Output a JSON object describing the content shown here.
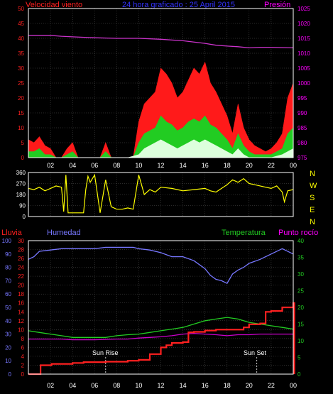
{
  "header": {
    "wind_label": "Velocidad viento",
    "title": "24 hora graficado : 25 April 2015",
    "pressure_label": "Presión"
  },
  "direction_letters": [
    "N",
    "W",
    "S",
    "E",
    "N"
  ],
  "lower_header": {
    "rain_label": "Lluvia",
    "humidity_label": "Humedad",
    "temperature_label": "Temperatura",
    "dewpoint_label": "Punto rocío"
  },
  "annotations": {
    "sunrise": "Sun Rise",
    "sunset": "Sun Set"
  },
  "colors": {
    "background": "#000000",
    "frame": "#ffffff",
    "grid": "#555555",
    "wind_axis": "#ff2020",
    "pressure_axis": "#ff00ff",
    "title": "#3333ff",
    "direction": "#ffff00",
    "humidity": "#7777ff",
    "rain": "#ff2020",
    "temperature": "#22cc22",
    "dewpoint": "#cc00cc",
    "gust": "#ff1a1a",
    "average_wind": "#22cc22",
    "min_wind": "#ddffdd",
    "pressure": "#cc33cc"
  },
  "chart_data": [
    {
      "type": "area",
      "title": "24 hora graficado : 25 April 2015",
      "x_ticks": [
        "02",
        "04",
        "06",
        "08",
        "10",
        "12",
        "14",
        "16",
        "18",
        "20",
        "22",
        "00"
      ],
      "x_range": [
        0,
        24
      ],
      "y_left": {
        "label": "Velocidad viento",
        "range": [
          0,
          50
        ],
        "ticks": [
          0,
          5,
          10,
          15,
          20,
          25,
          30,
          35,
          40,
          45,
          50
        ]
      },
      "y_right": {
        "label": "Presión",
        "range": [
          975,
          1025
        ],
        "ticks": [
          975,
          980,
          985,
          990,
          995,
          1000,
          1005,
          1010,
          1015,
          1020,
          1025
        ]
      },
      "grid": true,
      "series": [
        {
          "name": "Presión",
          "axis": "right",
          "x": [
            0,
            2,
            3,
            4,
            6,
            8,
            10,
            12,
            14,
            16,
            17,
            18,
            19,
            20,
            21,
            22,
            24
          ],
          "y": [
            1016,
            1016,
            1015.7,
            1015.5,
            1015.2,
            1015,
            1015,
            1014.7,
            1014.2,
            1013.3,
            1012.7,
            1012.4,
            1012.2,
            1011.8,
            1012,
            1012,
            1011.8
          ]
        },
        {
          "axis": "left",
          "x": [
            0,
            0.5,
            1,
            1.5,
            2,
            2.5,
            3,
            3.5,
            4,
            4.5,
            5,
            5.5,
            6,
            6.5,
            7,
            7.5,
            8,
            8.5,
            9,
            9.5,
            10,
            10.5,
            11,
            11.5,
            12,
            12.5,
            13,
            13.5,
            14,
            14.5,
            15,
            15.5,
            16,
            16.5,
            17,
            17.5,
            18,
            18.5,
            19,
            19.5,
            20,
            20.5,
            21,
            21.5,
            22,
            22.5,
            23,
            23.5,
            24
          ],
          "y": [
            6,
            5,
            7,
            4,
            3,
            0,
            0,
            3,
            5,
            0,
            0,
            0,
            0,
            0,
            5,
            0,
            0,
            0,
            0,
            0,
            12,
            18,
            20,
            22,
            30,
            28,
            25,
            20,
            22,
            26,
            30,
            28,
            32,
            25,
            22,
            18,
            14,
            8,
            18,
            10,
            6,
            4,
            3,
            2,
            3,
            5,
            8,
            20,
            25
          ]
        },
        {
          "axis": "left",
          "x": [
            0,
            0.5,
            1,
            1.5,
            2,
            2.5,
            3,
            3.5,
            4,
            4.5,
            5,
            5.5,
            6,
            6.5,
            7,
            7.5,
            8,
            8.5,
            9,
            9.5,
            10,
            10.5,
            11,
            11.5,
            12,
            12.5,
            13,
            13.5,
            14,
            14.5,
            15,
            15.5,
            16,
            16.5,
            17,
            17.5,
            18,
            18.5,
            19,
            19.5,
            20,
            20.5,
            21,
            21.5,
            22,
            22.5,
            23,
            23.5,
            24
          ],
          "y": [
            2,
            2,
            3,
            1,
            1,
            0,
            0,
            1,
            2,
            0,
            0,
            0,
            0,
            0,
            2,
            0,
            0,
            0,
            0,
            0,
            5,
            8,
            9,
            10,
            14,
            12,
            11,
            9,
            10,
            12,
            13,
            12,
            14,
            11,
            10,
            8,
            6,
            3,
            8,
            4,
            2,
            1,
            1,
            1,
            1,
            2,
            3,
            8,
            10
          ]
        },
        {
          "axis": "left",
          "x": [
            0,
            1,
            2,
            3,
            4,
            5,
            6,
            7,
            8,
            9,
            10,
            10.5,
            11,
            11.5,
            12,
            12.5,
            13,
            13.5,
            14,
            14.5,
            15,
            15.5,
            16,
            16.5,
            17,
            17.5,
            18,
            18.5,
            19,
            19.5,
            20,
            21,
            22,
            23,
            24
          ],
          "y": [
            0,
            0,
            0,
            0,
            0,
            0,
            0,
            0,
            0,
            0,
            1,
            3,
            4,
            5,
            6,
            5,
            4,
            3,
            4,
            5,
            6,
            5,
            6,
            5,
            4,
            3,
            2,
            1,
            3,
            1,
            0,
            0,
            0,
            1,
            3
          ]
        }
      ]
    },
    {
      "type": "line",
      "x_ticks": [],
      "x_range": [
        0,
        24
      ],
      "y_left": {
        "range": [
          0,
          360
        ],
        "ticks": [
          0,
          90,
          180,
          270,
          360
        ]
      },
      "grid": true,
      "series": [
        {
          "axis": "left",
          "x": [
            0,
            0.5,
            1,
            1.5,
            2,
            2.5,
            3,
            3.2,
            3.4,
            3.6,
            4,
            4.5,
            5,
            5.2,
            5.4,
            5.6,
            6,
            6.5,
            7,
            7.5,
            8,
            8.5,
            9,
            9.5,
            10,
            10.5,
            11,
            11.5,
            12,
            13,
            14,
            15,
            16,
            16.5,
            17,
            17.5,
            18,
            18.5,
            19,
            19.5,
            20,
            20.5,
            21,
            21.5,
            22,
            22.5,
            23,
            23.2,
            23.5,
            24
          ],
          "y": [
            230,
            220,
            240,
            210,
            230,
            250,
            240,
            40,
            340,
            30,
            30,
            30,
            30,
            220,
            330,
            280,
            340,
            30,
            300,
            80,
            60,
            60,
            70,
            60,
            340,
            180,
            220,
            200,
            240,
            230,
            210,
            220,
            230,
            210,
            200,
            230,
            260,
            300,
            280,
            310,
            270,
            260,
            250,
            240,
            230,
            250,
            200,
            120,
            210,
            220
          ]
        }
      ]
    },
    {
      "type": "line",
      "x_ticks": [
        "02",
        "04",
        "06",
        "08",
        "10",
        "12",
        "14",
        "16",
        "18",
        "20",
        "22",
        "00"
      ],
      "x_range": [
        0,
        24
      ],
      "y_axes": {
        "humidity": {
          "label": "Humedad",
          "range": [
            0,
            100
          ],
          "ticks": [
            0,
            10,
            20,
            30,
            40,
            50,
            60,
            70,
            80,
            90,
            100
          ]
        },
        "rain": {
          "label": "Lluvia",
          "range": [
            0,
            30
          ],
          "ticks": [
            0,
            2,
            4,
            6,
            8,
            10,
            12,
            14,
            16,
            18,
            20,
            22,
            24,
            26,
            28,
            30
          ]
        },
        "temperature": {
          "label": "Temperatura",
          "range": [
            0,
            40
          ],
          "ticks": [
            0,
            5,
            10,
            15,
            20,
            25,
            30,
            35,
            40
          ]
        }
      },
      "grid": true,
      "series": [
        {
          "name": "Humedad",
          "axis": "humidity",
          "x": [
            0,
            0.5,
            1,
            2,
            3,
            4,
            5,
            6,
            7,
            8,
            9,
            9.5,
            10,
            11,
            12,
            13,
            14,
            15,
            16,
            16.5,
            17,
            17.5,
            18,
            18.5,
            19,
            19.5,
            20,
            21,
            22,
            23,
            24
          ],
          "y": [
            86,
            88,
            92,
            93,
            94,
            94,
            94,
            94,
            95,
            95,
            95,
            95,
            94,
            93,
            91,
            88,
            88,
            85,
            79,
            74,
            71,
            70,
            68,
            75,
            78,
            80,
            83,
            86,
            90,
            94,
            90
          ]
        },
        {
          "name": "Lluvia",
          "axis": "rain",
          "x": [
            0,
            1,
            1.1,
            2,
            2.1,
            4,
            5,
            7,
            9,
            10,
            11,
            12,
            12.5,
            13,
            14,
            14.5,
            15,
            16,
            17,
            18,
            19,
            19.5,
            20,
            21,
            21.5,
            22,
            23,
            24,
            24.1
          ],
          "y": [
            0,
            0,
            2,
            2,
            2.3,
            2.5,
            2.7,
            2.8,
            3,
            3.2,
            4.5,
            6,
            6.5,
            7,
            7.2,
            9.4,
            9.5,
            9.8,
            10,
            10,
            10,
            10.5,
            11.2,
            11.4,
            14,
            14.2,
            15,
            16,
            0
          ]
        },
        {
          "name": "Temperatura",
          "axis": "temperature",
          "x": [
            0,
            1,
            2,
            3,
            4,
            5,
            6,
            7,
            8,
            9,
            10,
            11,
            12,
            13,
            14,
            15,
            16,
            17,
            18,
            19,
            20,
            21,
            22,
            23,
            24
          ],
          "y": [
            13,
            12.5,
            12,
            11.5,
            11,
            11,
            11,
            11,
            11.5,
            11.8,
            12,
            12.5,
            13,
            13.5,
            14,
            15,
            16,
            16.5,
            17,
            16.5,
            15.5,
            15,
            14.5,
            14,
            13.5
          ]
        },
        {
          "name": "Punto rocío",
          "axis": "temperature",
          "x": [
            0,
            1,
            2,
            3,
            4,
            5,
            6,
            7,
            8,
            9,
            10,
            11,
            12,
            13,
            14,
            15,
            16,
            17,
            18,
            19,
            20,
            21,
            22,
            23,
            24
          ],
          "y": [
            10.5,
            10.5,
            10.5,
            10.5,
            10.3,
            10.3,
            10.3,
            10.4,
            10.5,
            10.5,
            10.8,
            11,
            11.2,
            11.5,
            12,
            12.2,
            12,
            11.8,
            11.5,
            11.8,
            11.8,
            12,
            12,
            12,
            12
          ]
        }
      ],
      "annotations": [
        {
          "label": "Sun Rise",
          "x": 7
        },
        {
          "label": "Sun Set",
          "x": 20.7
        }
      ]
    }
  ]
}
